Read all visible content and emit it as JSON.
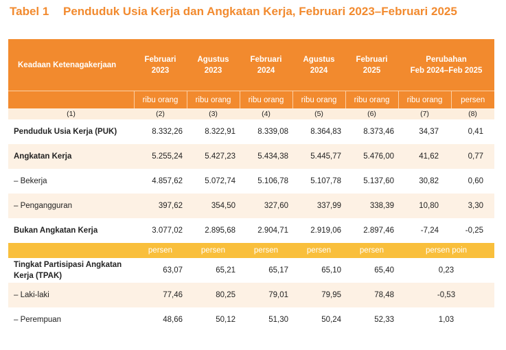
{
  "title": {
    "number": "Tabel 1",
    "text": "Penduduk Usia Kerja dan Angkatan Kerja, Februari 2023–Februari 2025"
  },
  "header": {
    "stub": "Keadaan Ketenagakerjaan",
    "periods": [
      {
        "month": "Februari",
        "year": "2023"
      },
      {
        "month": "Agustus",
        "year": "2023"
      },
      {
        "month": "Februari",
        "year": "2024"
      },
      {
        "month": "Agustus",
        "year": "2024"
      },
      {
        "month": "Februari",
        "year": "2025"
      }
    ],
    "change": {
      "line1": "Perubahan",
      "line2": "Feb 2024–Feb 2025"
    },
    "unit_ribu": "ribu orang",
    "unit_persen": "persen",
    "index": [
      "(1)",
      "(2)",
      "(3)",
      "(4)",
      "(5)",
      "(6)",
      "(7)",
      "(8)"
    ]
  },
  "rows_ribu": [
    {
      "label": "Penduduk Usia Kerja (PUK)",
      "values": [
        "8.332,26",
        "8.322,91",
        "8.339,08",
        "8.364,83",
        "8.373,46",
        "34,37",
        "0,41"
      ]
    },
    {
      "label": "Angkatan Kerja",
      "values": [
        "5.255,24",
        "5.427,23",
        "5.434,38",
        "5.445,77",
        "5.476,00",
        "41,62",
        "0,77"
      ]
    },
    {
      "label": "– Bekerja",
      "values": [
        "4.857,62",
        "5.072,74",
        "5.106,78",
        "5.107,78",
        "5.137,60",
        "30,82",
        "0,60"
      ]
    },
    {
      "label": "– Pengangguran",
      "values": [
        "397,62",
        "354,50",
        "327,60",
        "337,99",
        "338,39",
        "10,80",
        "3,30"
      ]
    },
    {
      "label": "Bukan Angkatan Kerja",
      "values": [
        "3.077,02",
        "2.895,68",
        "2.904,71",
        "2.919,06",
        "2.897,46",
        "-7,24",
        "-0,25"
      ]
    }
  ],
  "unit_row": {
    "persen": "persen",
    "persen_poin": "persen poin"
  },
  "rows_persen": [
    {
      "label": "Tingkat Partisipasi Angkatan Kerja (TPAK)",
      "values": [
        "63,07",
        "65,21",
        "65,17",
        "65,10",
        "65,40"
      ],
      "change": "0,23"
    },
    {
      "label": "– Laki-laki",
      "values": [
        "77,46",
        "80,25",
        "79,01",
        "79,95",
        "78,48"
      ],
      "change": "-0,53"
    },
    {
      "label": "– Perempuan",
      "values": [
        "48,66",
        "50,12",
        "51,30",
        "50,24",
        "52,33"
      ],
      "change": "1,03"
    }
  ]
}
